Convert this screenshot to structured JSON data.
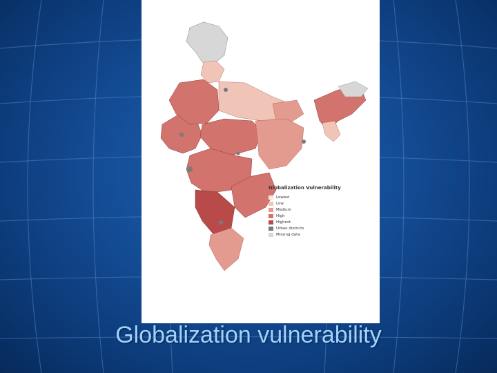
{
  "slide": {
    "title": "Globalization vulnerability"
  },
  "map": {
    "legend": {
      "title": "Globalization Vulnerability",
      "items": [
        {
          "label": "Lowest",
          "color": "#f7e7dc"
        },
        {
          "label": "Low",
          "color": "#f0c5b8"
        },
        {
          "label": "Medium",
          "color": "#e39a8f"
        },
        {
          "label": "High",
          "color": "#d2736d"
        },
        {
          "label": "Highest",
          "color": "#b84a4a"
        },
        {
          "label": "Urban districts",
          "color": "#7a7a7a"
        },
        {
          "label": "Missing data",
          "color": "#d7d7d7"
        }
      ]
    }
  }
}
